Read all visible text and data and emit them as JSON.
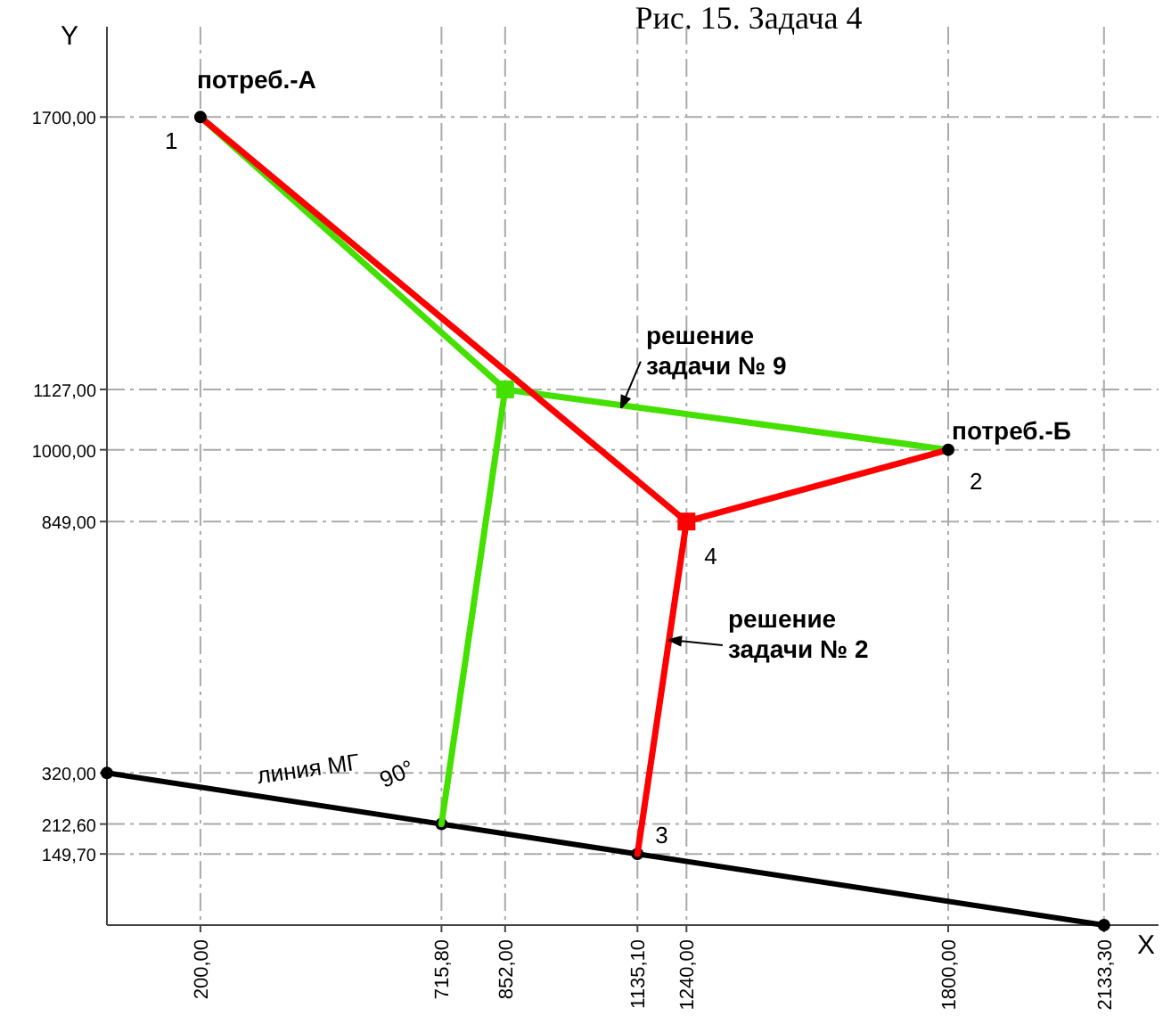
{
  "chart_data": {
    "type": "line",
    "title": "Рис. 15. Задача 4",
    "xlabel": "X",
    "ylabel": "Y",
    "xlim": [
      0,
      2250
    ],
    "ylim": [
      0,
      1890
    ],
    "xticks": [
      {
        "value": 200,
        "label": "200,00"
      },
      {
        "value": 715.8,
        "label": "715,80"
      },
      {
        "value": 852,
        "label": "852,00"
      },
      {
        "value": 1135.1,
        "label": "1135,10"
      },
      {
        "value": 1240,
        "label": "1240,00"
      },
      {
        "value": 1800,
        "label": "1800,00"
      },
      {
        "value": 2133.3,
        "label": "2133,30"
      }
    ],
    "yticks": [
      {
        "value": 149.7,
        "label": "149,70"
      },
      {
        "value": 212.6,
        "label": "212,60"
      },
      {
        "value": 320,
        "label": "320,00"
      },
      {
        "value": 849,
        "label": "849,00"
      },
      {
        "value": 1000,
        "label": "1000,00"
      },
      {
        "value": 1127,
        "label": "1127,00"
      },
      {
        "value": 1700,
        "label": "1700,00"
      }
    ],
    "grid": true,
    "line_style": "solid",
    "marker": "none",
    "series": [
      {
        "color": "#000000",
        "x": [
          0,
          715.8,
          1135.1,
          2133.3
        ],
        "values": [
          320,
          212.6,
          149.7,
          0
        ],
        "marker": "circle"
      },
      {
        "color": "#44e000",
        "x": [
          200,
          852,
          1800
        ],
        "values": [
          1700,
          1127,
          1000
        ]
      },
      {
        "color": "#44e000",
        "x": [
          852,
          715.8
        ],
        "values": [
          1127,
          212.6
        ]
      },
      {
        "color": "#ff0000",
        "x": [
          200,
          1240,
          1800
        ],
        "values": [
          1700,
          849,
          1000
        ]
      },
      {
        "color": "#ff0000",
        "x": [
          1240,
          1135.1
        ],
        "values": [
          849,
          149.7
        ]
      },
      {
        "type": "scatter",
        "color": "#000000",
        "x": [
          200,
          1800
        ],
        "values": [
          1700,
          1000
        ],
        "marker": "circle"
      },
      {
        "type": "scatter",
        "color": "#44e000",
        "x": [
          852
        ],
        "values": [
          1127
        ],
        "marker": "square"
      },
      {
        "type": "scatter",
        "color": "#ff0000",
        "x": [
          1240
        ],
        "values": [
          849
        ],
        "marker": "square"
      }
    ],
    "annotations": [
      {
        "text": "потреб.-А",
        "x": 200,
        "y": 1700
      },
      {
        "text": "1",
        "x": 200,
        "y": 1700
      },
      {
        "text": "потреб.-Б",
        "x": 1800,
        "y": 1000
      },
      {
        "text": "2",
        "x": 1800,
        "y": 1000
      },
      {
        "text": "4",
        "x": 1240,
        "y": 849
      },
      {
        "text": "3",
        "x": 1135.1,
        "y": 149.7
      },
      {
        "text": "решение\nзадачи № 9",
        "x": 1100,
        "y": 1088
      },
      {
        "text": "решение\nзадачи № 2",
        "x": 1203,
        "y": 600
      },
      {
        "text": "линия МГ",
        "x": 400,
        "y": 260
      },
      {
        "text": "90°",
        "x": 715.8,
        "y": 212.6
      }
    ]
  }
}
